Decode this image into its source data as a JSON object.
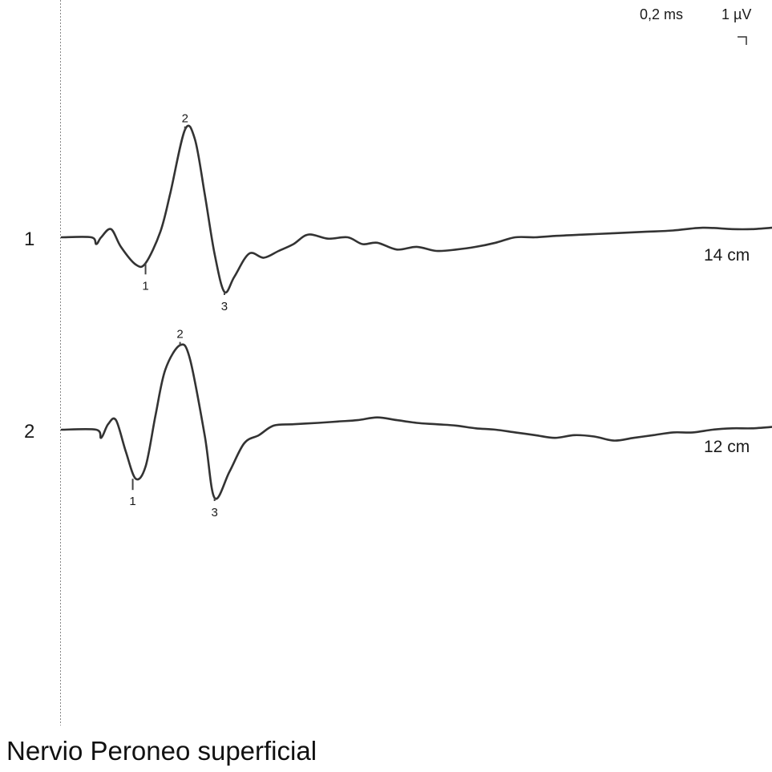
{
  "chart_data": {
    "type": "line",
    "title": "Nervio Peroneo superficial",
    "scale": {
      "time_label": "0,2 ms",
      "amplitude_label": "1 µV"
    },
    "x_unit": "ms",
    "y_unit": "µV",
    "traces": [
      {
        "label": "1",
        "distance": "14 cm",
        "x": [
          0.0,
          0.3,
          0.35,
          0.4,
          0.5,
          0.6,
          0.75,
          0.85,
          1.0,
          1.1,
          1.25,
          1.35,
          1.45,
          1.55,
          1.65,
          1.75,
          1.9,
          2.05,
          2.2,
          2.35,
          2.5,
          2.7,
          2.9,
          3.05,
          3.2,
          3.4,
          3.6,
          3.8,
          4.0,
          4.2,
          4.4,
          4.6,
          4.8,
          5.0,
          5.3,
          5.6,
          5.9,
          6.2,
          6.5,
          6.8,
          7.0,
          7.2
        ],
        "y": [
          0.0,
          0.0,
          -0.25,
          0.0,
          0.3,
          -0.35,
          -1.0,
          -0.95,
          0.2,
          1.6,
          3.95,
          3.6,
          1.6,
          -0.6,
          -2.0,
          -1.45,
          -0.6,
          -0.75,
          -0.5,
          -0.25,
          0.1,
          -0.05,
          0.0,
          -0.25,
          -0.2,
          -0.45,
          -0.35,
          -0.5,
          -0.45,
          -0.35,
          -0.2,
          0.0,
          0.0,
          0.05,
          0.1,
          0.15,
          0.2,
          0.25,
          0.35,
          0.3,
          0.3,
          0.35
        ],
        "markers": [
          {
            "label": "1",
            "x": 0.85,
            "y": -0.95
          },
          {
            "label": "2",
            "x": 1.25,
            "y": 3.95
          },
          {
            "label": "3",
            "x": 1.65,
            "y": -2.0
          }
        ]
      },
      {
        "label": "2",
        "distance": "12 cm",
        "x": [
          0.0,
          0.35,
          0.4,
          0.47,
          0.55,
          0.65,
          0.75,
          0.85,
          0.95,
          1.05,
          1.2,
          1.3,
          1.45,
          1.55,
          1.7,
          1.85,
          2.0,
          2.15,
          2.35,
          2.6,
          2.8,
          3.0,
          3.2,
          3.4,
          3.6,
          3.8,
          4.0,
          4.2,
          4.4,
          4.6,
          4.8,
          5.0,
          5.2,
          5.4,
          5.6,
          5.8,
          6.0,
          6.2,
          6.4,
          6.6,
          6.8,
          7.0,
          7.2
        ],
        "y": [
          0.0,
          0.0,
          -0.3,
          0.2,
          0.35,
          -0.8,
          -1.8,
          -1.35,
          0.5,
          2.2,
          3.1,
          2.6,
          -0.2,
          -2.5,
          -1.55,
          -0.5,
          -0.2,
          0.15,
          0.2,
          0.25,
          0.3,
          0.35,
          0.45,
          0.35,
          0.25,
          0.2,
          0.15,
          0.05,
          0.0,
          -0.1,
          -0.2,
          -0.3,
          -0.2,
          -0.25,
          -0.4,
          -0.3,
          -0.2,
          -0.1,
          -0.1,
          0.0,
          0.05,
          0.05,
          0.1
        ],
        "markers": [
          {
            "label": "1",
            "x": 0.72,
            "y": -1.8
          },
          {
            "label": "2",
            "x": 1.2,
            "y": 3.1
          },
          {
            "label": "3",
            "x": 1.55,
            "y": -2.5
          }
        ]
      }
    ]
  }
}
